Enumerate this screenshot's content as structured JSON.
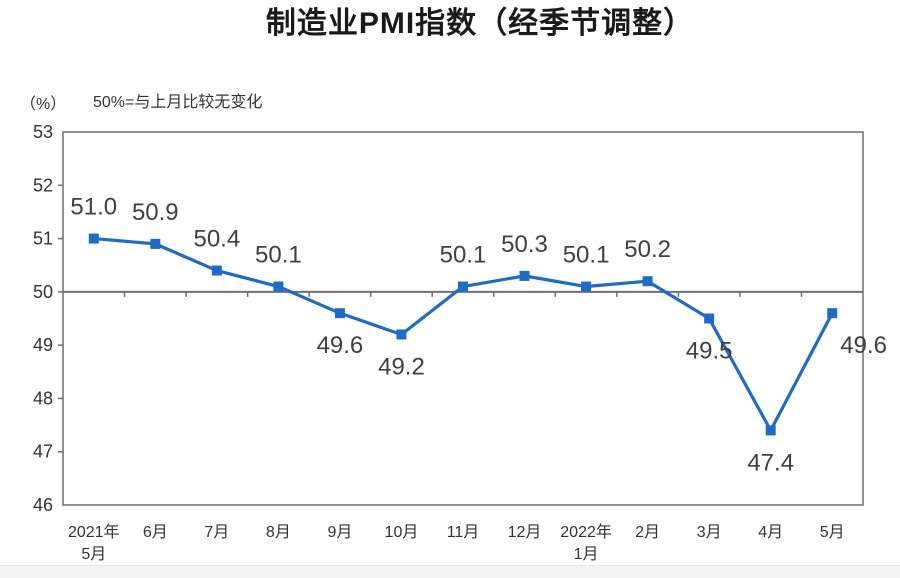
{
  "chart_data": {
    "type": "line",
    "title": "制造业PMI指数（经季节调整）",
    "subtitle": "50%=与上月比较无变化",
    "unit_label": "（%）",
    "categories": [
      [
        "2021年",
        "5月"
      ],
      [
        "6月"
      ],
      [
        "7月"
      ],
      [
        "8月"
      ],
      [
        "9月"
      ],
      [
        "10月"
      ],
      [
        "11月"
      ],
      [
        "12月"
      ],
      [
        "2022年",
        "1月"
      ],
      [
        "2月"
      ],
      [
        "3月"
      ],
      [
        "4月"
      ],
      [
        "5月"
      ]
    ],
    "values": [
      51.0,
      50.9,
      50.4,
      50.1,
      49.6,
      49.2,
      50.1,
      50.3,
      50.1,
      50.2,
      49.5,
      47.4,
      49.6
    ],
    "value_labels": [
      "51.0",
      "50.9",
      "50.4",
      "50.1",
      "49.6",
      "49.2",
      "50.1",
      "50.3",
      "50.1",
      "50.2",
      "49.5",
      "47.4",
      "49.6"
    ],
    "ylim": [
      46,
      53
    ],
    "ytick_step": 1,
    "reference_line": 50,
    "grid": "reference-line-only",
    "legend": "none",
    "marker": "square",
    "colors": {
      "line": "#1E6BC8",
      "marker": "#1E6BC8",
      "axis": "#6f6f6f",
      "tick_label": "#333333",
      "data_label": "#404040"
    }
  }
}
